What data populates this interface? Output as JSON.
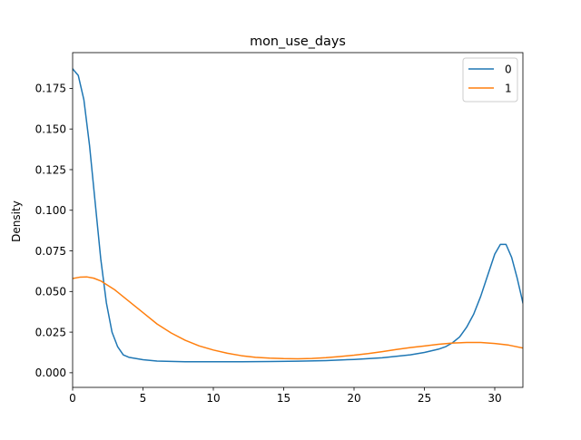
{
  "chart_data": {
    "type": "line",
    "title": "mon_use_days",
    "xlabel": "",
    "ylabel": "Density",
    "xlim": [
      0,
      32
    ],
    "ylim": [
      -0.009,
      0.197
    ],
    "x_ticks": [
      0,
      5,
      10,
      15,
      20,
      25,
      30
    ],
    "x_tick_labels": [
      "0",
      "5",
      "10",
      "15",
      "20",
      "25",
      "30"
    ],
    "y_ticks": [
      0,
      0.025,
      0.05,
      0.075,
      0.1,
      0.125,
      0.15,
      0.175
    ],
    "y_tick_labels": [
      "0.000",
      "0.025",
      "0.050",
      "0.075",
      "0.100",
      "0.125",
      "0.150",
      "0.175"
    ],
    "grid": false,
    "legend_position": "top-right",
    "series": [
      {
        "name": "0",
        "color": "#1f77b4",
        "x": [
          0,
          0.4,
          0.8,
          1.2,
          1.6,
          2.0,
          2.4,
          2.8,
          3.2,
          3.6,
          4,
          5,
          6,
          8,
          10,
          12,
          14,
          16,
          18,
          20,
          22,
          24,
          25,
          26,
          26.5,
          27,
          27.5,
          28,
          28.5,
          29,
          29.5,
          30,
          30.4,
          30.8,
          31.2,
          31.6,
          32
        ],
        "y": [
          0.187,
          0.183,
          0.168,
          0.14,
          0.105,
          0.07,
          0.043,
          0.025,
          0.016,
          0.011,
          0.0095,
          0.008,
          0.0072,
          0.0068,
          0.0068,
          0.0068,
          0.0069,
          0.0071,
          0.0075,
          0.0082,
          0.0092,
          0.011,
          0.0125,
          0.0145,
          0.016,
          0.0185,
          0.022,
          0.028,
          0.036,
          0.047,
          0.06,
          0.073,
          0.079,
          0.079,
          0.071,
          0.058,
          0.043
        ]
      },
      {
        "name": "1",
        "color": "#ff7f0e",
        "x": [
          0,
          0.5,
          1,
          1.5,
          2,
          3,
          4,
          5,
          6,
          7,
          8,
          9,
          10,
          11,
          12,
          13,
          14,
          15,
          16,
          17,
          18,
          19,
          20,
          21,
          22,
          23,
          24,
          25,
          26,
          27,
          28,
          29,
          30,
          31,
          32
        ],
        "y": [
          0.058,
          0.0588,
          0.059,
          0.0582,
          0.0565,
          0.051,
          0.044,
          0.037,
          0.03,
          0.0245,
          0.02,
          0.0165,
          0.014,
          0.012,
          0.0105,
          0.0095,
          0.009,
          0.0087,
          0.0086,
          0.0088,
          0.0093,
          0.01,
          0.0108,
          0.0118,
          0.013,
          0.0143,
          0.0155,
          0.0165,
          0.0175,
          0.0183,
          0.0186,
          0.0186,
          0.018,
          0.017,
          0.0152
        ]
      }
    ]
  }
}
